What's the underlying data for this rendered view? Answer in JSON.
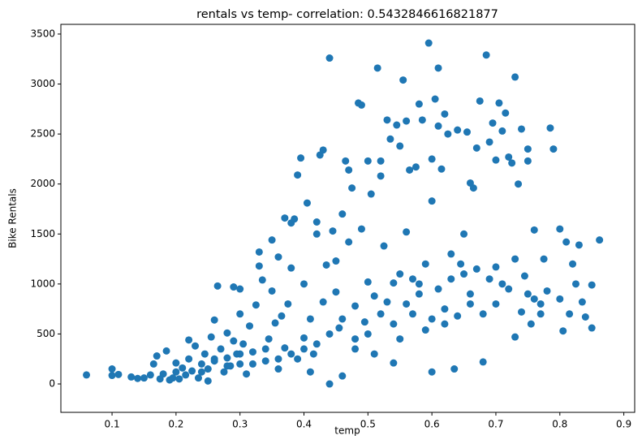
{
  "chart_data": {
    "type": "scatter",
    "title": "rentals vs temp- correlation: 0.5432846616821877",
    "x_label": "temp",
    "y_label": "Bike Rentals",
    "color": "#1f77b4",
    "xlim": [
      0.02,
      0.917
    ],
    "ylim": [
      -284,
      3597
    ],
    "xticks": [
      {
        "value": 0.1,
        "label": "0.1"
      },
      {
        "value": 0.2,
        "label": "0.2"
      },
      {
        "value": 0.3,
        "label": "0.3"
      },
      {
        "value": 0.4,
        "label": "0.4"
      },
      {
        "value": 0.5,
        "label": "0.5"
      },
      {
        "value": 0.6,
        "label": "0.6"
      },
      {
        "value": 0.7,
        "label": "0.7"
      },
      {
        "value": 0.8,
        "label": "0.8"
      },
      {
        "value": 0.9,
        "label": "0.9"
      }
    ],
    "yticks": [
      0,
      500,
      1000,
      1500,
      2000,
      2500,
      3000,
      3500
    ],
    "grid": false,
    "x": [
      0.06,
      0.1,
      0.1,
      0.11,
      0.13,
      0.14,
      0.15,
      0.16,
      0.165,
      0.17,
      0.175,
      0.18,
      0.185,
      0.19,
      0.195,
      0.2,
      0.2,
      0.205,
      0.21,
      0.215,
      0.22,
      0.22,
      0.225,
      0.23,
      0.235,
      0.24,
      0.245,
      0.25,
      0.25,
      0.255,
      0.26,
      0.26,
      0.265,
      0.27,
      0.275,
      0.28,
      0.28,
      0.285,
      0.29,
      0.29,
      0.295,
      0.3,
      0.3,
      0.3,
      0.305,
      0.31,
      0.315,
      0.32,
      0.325,
      0.33,
      0.33,
      0.335,
      0.34,
      0.345,
      0.35,
      0.35,
      0.355,
      0.36,
      0.36,
      0.365,
      0.37,
      0.37,
      0.375,
      0.38,
      0.38,
      0.385,
      0.39,
      0.39,
      0.395,
      0.4,
      0.4,
      0.405,
      0.41,
      0.41,
      0.415,
      0.42,
      0.42,
      0.425,
      0.43,
      0.43,
      0.435,
      0.44,
      0.44,
      0.445,
      0.45,
      0.45,
      0.455,
      0.46,
      0.46,
      0.465,
      0.47,
      0.47,
      0.475,
      0.48,
      0.48,
      0.485,
      0.49,
      0.49,
      0.495,
      0.5,
      0.5,
      0.505,
      0.51,
      0.51,
      0.515,
      0.52,
      0.52,
      0.525,
      0.53,
      0.53,
      0.535,
      0.54,
      0.54,
      0.545,
      0.55,
      0.55,
      0.555,
      0.56,
      0.56,
      0.565,
      0.57,
      0.575,
      0.58,
      0.58,
      0.585,
      0.59,
      0.595,
      0.6,
      0.6,
      0.6,
      0.605,
      0.61,
      0.61,
      0.615,
      0.62,
      0.62,
      0.625,
      0.63,
      0.635,
      0.64,
      0.645,
      0.65,
      0.655,
      0.66,
      0.66,
      0.665,
      0.67,
      0.675,
      0.68,
      0.685,
      0.69,
      0.695,
      0.7,
      0.7,
      0.705,
      0.71,
      0.715,
      0.72,
      0.725,
      0.73,
      0.73,
      0.735,
      0.74,
      0.745,
      0.75,
      0.75,
      0.755,
      0.76,
      0.77,
      0.775,
      0.78,
      0.785,
      0.79,
      0.8,
      0.8,
      0.805,
      0.81,
      0.815,
      0.82,
      0.825,
      0.83,
      0.835,
      0.84,
      0.85,
      0.85,
      0.862,
      0.52,
      0.54,
      0.56,
      0.58,
      0.6,
      0.62,
      0.64,
      0.66,
      0.68,
      0.7,
      0.72,
      0.74,
      0.76,
      0.5,
      0.48,
      0.46,
      0.44,
      0.42,
      0.4,
      0.38,
      0.36,
      0.34,
      0.32,
      0.3,
      0.28,
      0.26,
      0.24,
      0.55,
      0.57,
      0.59,
      0.61,
      0.63,
      0.65,
      0.67,
      0.69,
      0.71,
      0.73,
      0.75,
      0.77
    ],
    "values": [
      90,
      150,
      85,
      95,
      70,
      55,
      60,
      90,
      200,
      280,
      50,
      100,
      330,
      40,
      60,
      120,
      210,
      50,
      160,
      90,
      440,
      250,
      130,
      380,
      60,
      200,
      300,
      30,
      150,
      470,
      640,
      230,
      980,
      350,
      120,
      510,
      260,
      180,
      970,
      430,
      300,
      950,
      700,
      200,
      400,
      100,
      580,
      320,
      790,
      1320,
      1180,
      1040,
      230,
      450,
      1440,
      930,
      610,
      1270,
      150,
      680,
      1660,
      360,
      800,
      1610,
      1160,
      1650,
      250,
      2090,
      2260,
      460,
      1000,
      1810,
      120,
      650,
      300,
      1620,
      1500,
      2290,
      2340,
      820,
      1190,
      3260,
      0,
      1530,
      920,
      1230,
      560,
      1700,
      80,
      2230,
      1420,
      2140,
      1960,
      450,
      780,
      2810,
      2790,
      1550,
      620,
      2230,
      1020,
      1900,
      300,
      880,
      3160,
      2080,
      2230,
      1380,
      2640,
      820,
      2450,
      210,
      1010,
      2590,
      2380,
      1100,
      3040,
      2630,
      1520,
      2140,
      700,
      2170,
      2800,
      1000,
      2640,
      540,
      3410,
      2250,
      120,
      1830,
      2850,
      3160,
      2580,
      2150,
      2700,
      600,
      2500,
      1050,
      150,
      2540,
      1200,
      1500,
      2520,
      2010,
      800,
      1960,
      2360,
      2830,
      220,
      3290,
      2420,
      2610,
      2240,
      1170,
      2810,
      2530,
      2710,
      2270,
      2210,
      3070,
      470,
      2000,
      2550,
      1080,
      2350,
      2230,
      600,
      1540,
      700,
      1250,
      930,
      2560,
      2350,
      1550,
      850,
      530,
      1420,
      700,
      1200,
      1000,
      1390,
      820,
      670,
      990,
      560,
      1440,
      700,
      600,
      800,
      900,
      650,
      750,
      680,
      900,
      700,
      800,
      950,
      720,
      850,
      500,
      350,
      650,
      500,
      400,
      350,
      300,
      250,
      350,
      200,
      300,
      180,
      250,
      120,
      450,
      1050,
      1200,
      950,
      1300,
      1100,
      1150,
      1050,
      1000,
      1250,
      900,
      800
    ]
  }
}
